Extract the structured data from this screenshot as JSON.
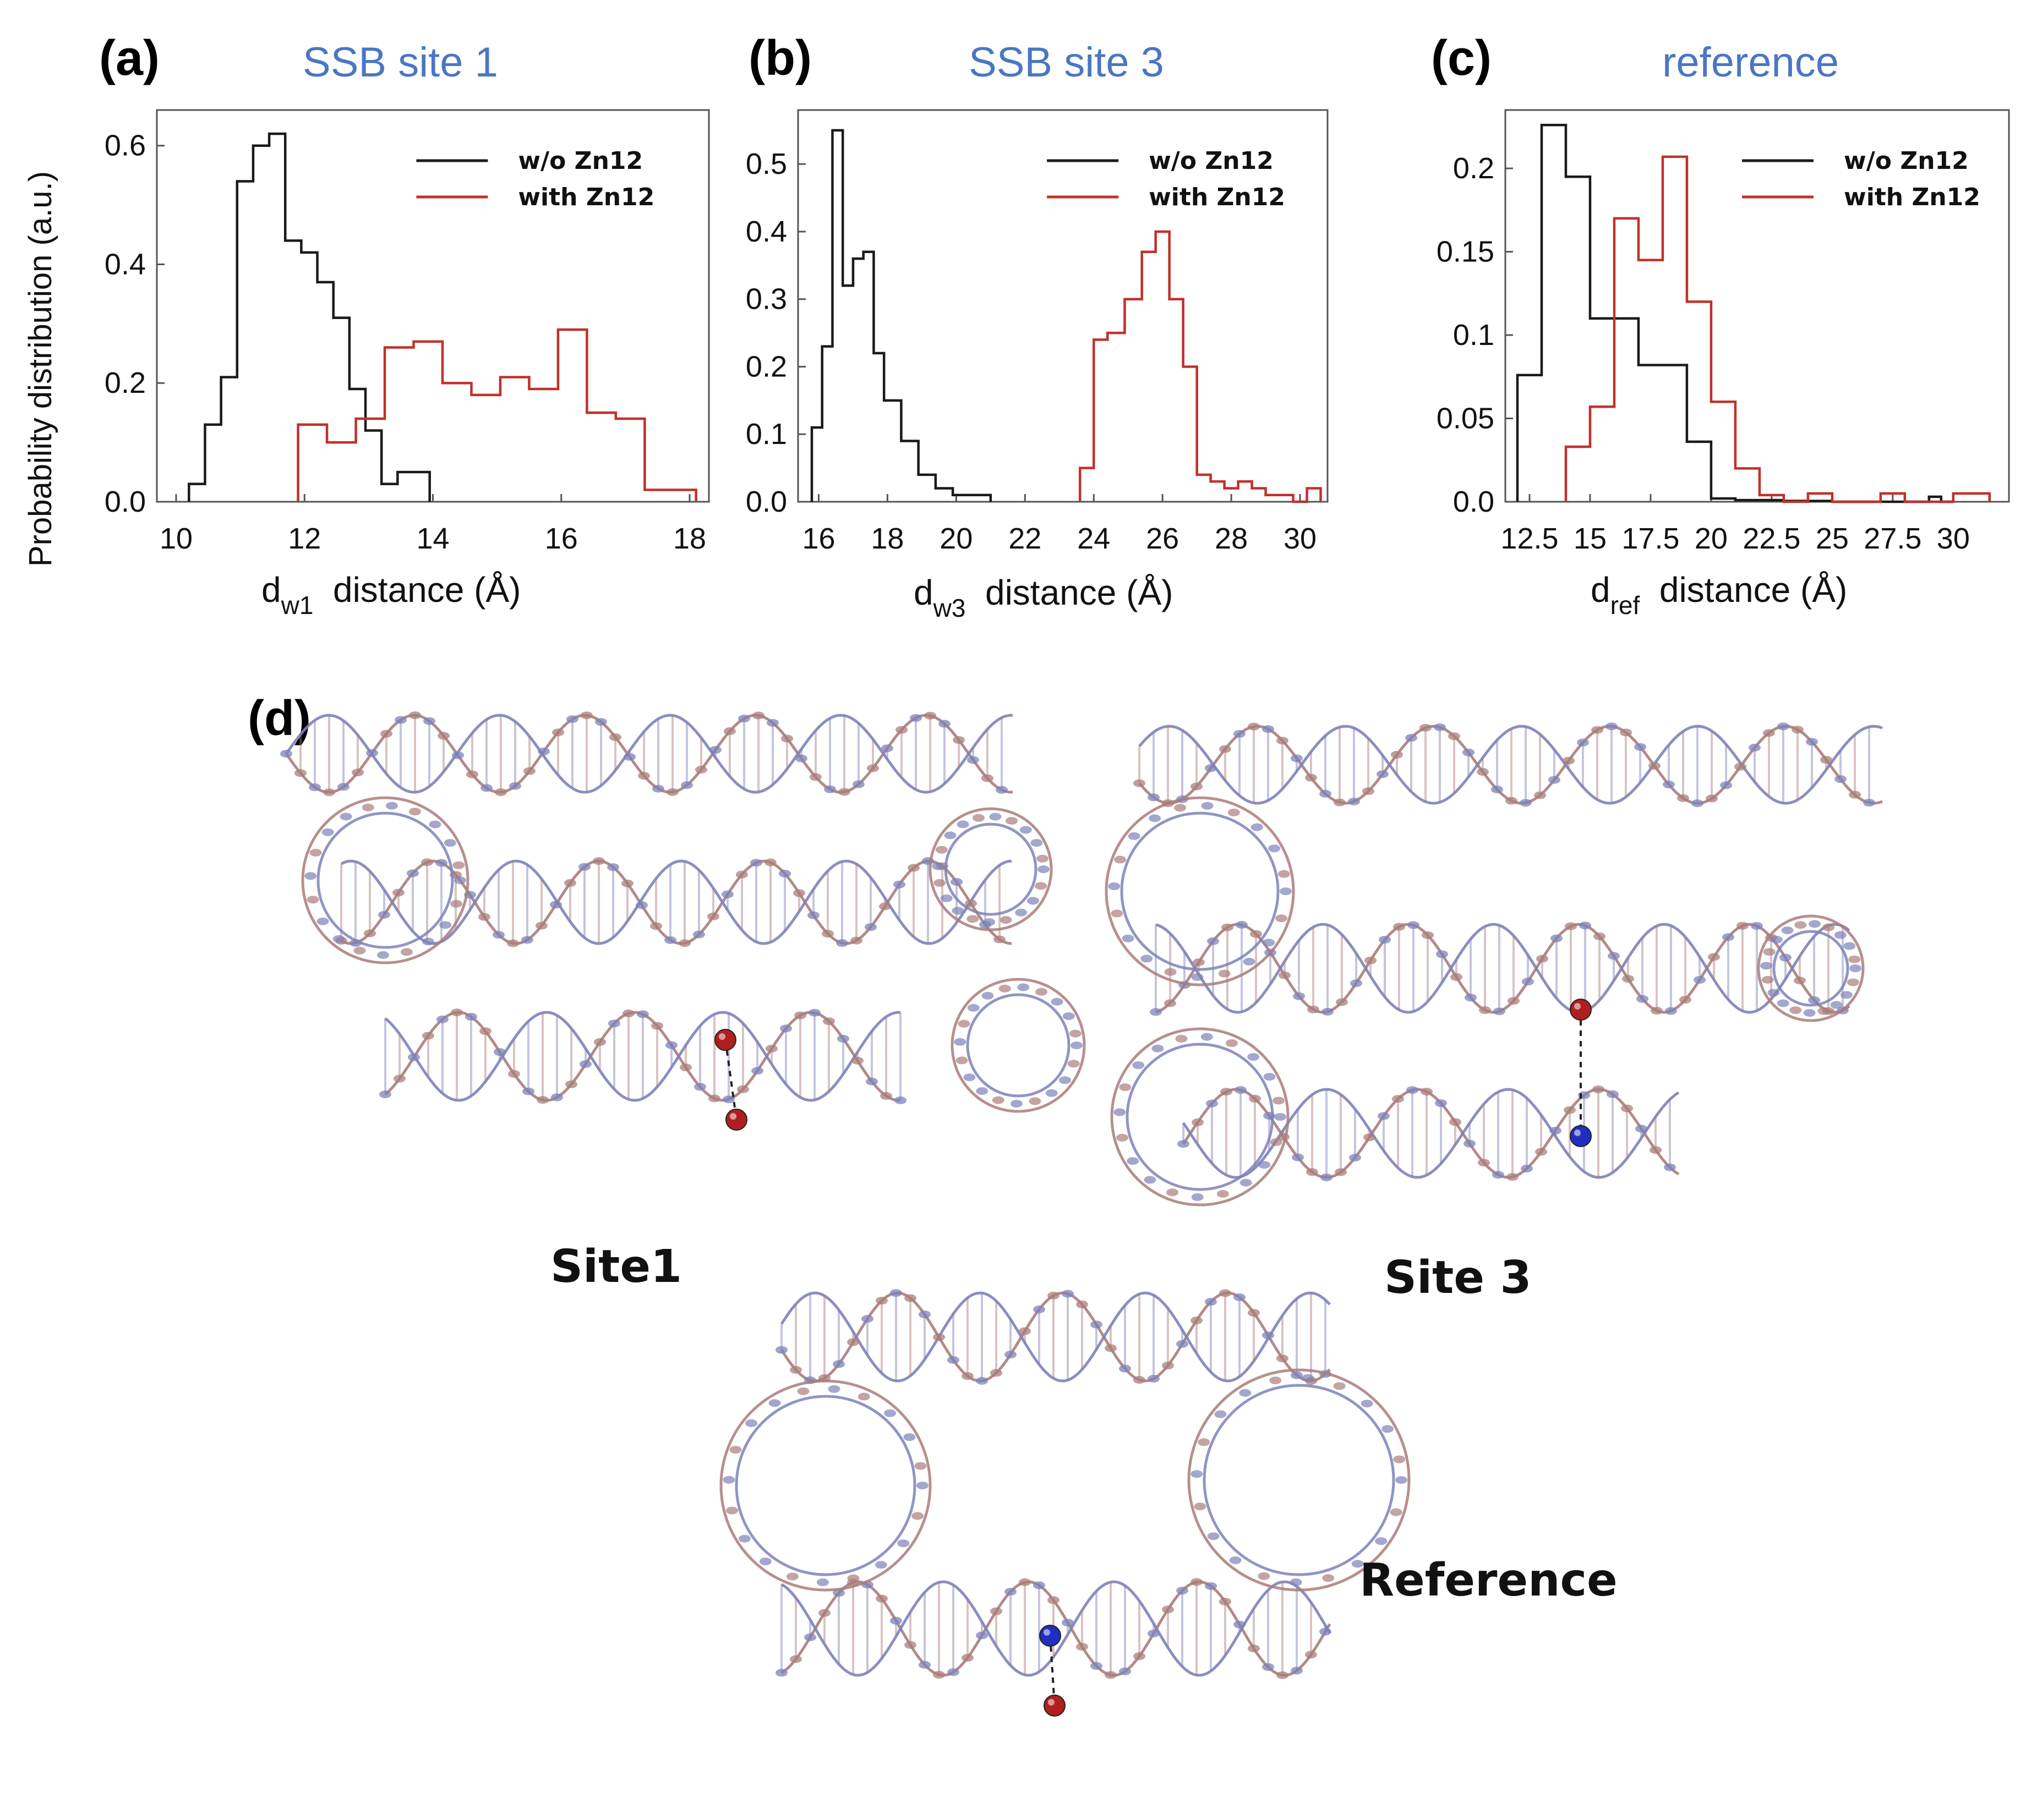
{
  "chart_data": [
    {
      "type": "step-histogram",
      "panel_letter": "(a)",
      "title": "SSB site 1",
      "xlabel_main": "d",
      "xlabel_sub": "w1",
      "xlabel_rest": "distance (Å)",
      "ylabel": "Probability distribution (a.u.)",
      "xlim": [
        9.7,
        18.3
      ],
      "ylim": [
        0,
        0.66
      ],
      "xticks": [
        10,
        12,
        14,
        16,
        18
      ],
      "yticks": [
        0.0,
        0.2,
        0.4,
        0.6
      ],
      "ytick_labels": [
        "0.0",
        "0.2",
        "0.4",
        "0.6"
      ],
      "legend": [
        "w/o Zn12",
        "with Zn12"
      ],
      "series": [
        {
          "name": "w/o Zn12",
          "color": "#1a1a1a",
          "edges": [
            10.2,
            10.45,
            10.7,
            10.95,
            11.2,
            11.45,
            11.7,
            11.95,
            12.2,
            12.45,
            12.7,
            12.95,
            13.2,
            13.45,
            13.7,
            13.95
          ],
          "values": [
            0.03,
            0.13,
            0.21,
            0.54,
            0.6,
            0.62,
            0.44,
            0.42,
            0.37,
            0.31,
            0.19,
            0.12,
            0.03,
            0.05,
            0.05
          ]
        },
        {
          "name": "with Zn12",
          "color": "#c0312b",
          "edges": [
            11.9,
            12.35,
            12.8,
            13.25,
            13.7,
            14.15,
            14.6,
            15.05,
            15.5,
            15.95,
            16.4,
            16.85,
            17.3,
            18.1
          ],
          "values": [
            0.13,
            0.1,
            0.14,
            0.26,
            0.27,
            0.2,
            0.18,
            0.21,
            0.19,
            0.29,
            0.15,
            0.14,
            0.02
          ]
        }
      ]
    },
    {
      "type": "step-histogram",
      "panel_letter": "(b)",
      "title": "SSB site 3",
      "xlabel_main": "d",
      "xlabel_sub": "w3",
      "xlabel_rest": "distance (Å)",
      "ylabel": "",
      "xlim": [
        15.4,
        30.8
      ],
      "ylim": [
        0,
        0.58
      ],
      "xticks": [
        16,
        18,
        20,
        22,
        24,
        26,
        28,
        30
      ],
      "yticks": [
        0.0,
        0.1,
        0.2,
        0.3,
        0.4,
        0.5
      ],
      "ytick_labels": [
        "0.0",
        "0.1",
        "0.2",
        "0.3",
        "0.4",
        "0.5"
      ],
      "legend": [
        "w/o Zn12",
        "with Zn12"
      ],
      "series": [
        {
          "name": "w/o Zn12",
          "color": "#1a1a1a",
          "edges": [
            15.8,
            16.1,
            16.4,
            16.7,
            17.0,
            17.3,
            17.6,
            17.9,
            18.4,
            18.9,
            19.4,
            19.9,
            20.3,
            21.0
          ],
          "values": [
            0.11,
            0.23,
            0.55,
            0.32,
            0.36,
            0.37,
            0.22,
            0.15,
            0.09,
            0.04,
            0.02,
            0.01,
            0.01
          ]
        },
        {
          "name": "with Zn12",
          "color": "#c0312b",
          "edges": [
            23.6,
            24.0,
            24.4,
            24.9,
            25.4,
            25.8,
            26.2,
            26.6,
            27.0,
            27.4,
            27.8,
            28.2,
            28.6,
            29.0,
            29.4,
            29.8,
            30.2,
            30.6
          ],
          "values": [
            0.05,
            0.24,
            0.25,
            0.3,
            0.37,
            0.4,
            0.3,
            0.2,
            0.04,
            0.03,
            0.02,
            0.03,
            0.02,
            0.01,
            0.01,
            0.0,
            0.02
          ]
        }
      ]
    },
    {
      "type": "step-histogram",
      "panel_letter": "(c)",
      "title": "reference",
      "xlabel_main": "d",
      "xlabel_sub": "ref",
      "xlabel_rest": "distance (Å)",
      "ylabel": "",
      "xlim": [
        11.5,
        32.3
      ],
      "ylim": [
        0,
        0.235
      ],
      "xticks": [
        12.5,
        15,
        17.5,
        20,
        22.5,
        25,
        27.5,
        30
      ],
      "xtick_labels": [
        "12.5",
        "15",
        "17.5",
        "20",
        "22.5",
        "25",
        "27.5",
        "30"
      ],
      "yticks": [
        0.0,
        0.05,
        0.1,
        0.15,
        0.2
      ],
      "ytick_labels": [
        "0.0",
        "0.05",
        "0.1",
        "0.15",
        "0.2"
      ],
      "legend": [
        "w/o Zn12",
        "with Zn12"
      ],
      "series": [
        {
          "name": "w/o Zn12",
          "color": "#1a1a1a",
          "edges": [
            12.0,
            13.0,
            14.0,
            15.0,
            16.0,
            17.0,
            18.0,
            19.0,
            20.0,
            21.0,
            22.0,
            23.0,
            24.0,
            25.0,
            29.0,
            29.5,
            30.0
          ],
          "values": [
            0.076,
            0.226,
            0.195,
            0.11,
            0.11,
            0.082,
            0.082,
            0.036,
            0.002,
            0.001,
            0.001,
            0.0005,
            0.0005,
            0.0,
            0.003,
            0.0
          ]
        },
        {
          "name": "with Zn12",
          "color": "#c0312b",
          "edges": [
            14.0,
            15.0,
            16.0,
            17.0,
            18.0,
            19.0,
            20.0,
            21.0,
            22.0,
            23.0,
            24.0,
            25.0,
            26.0,
            27.0,
            28.0,
            29.0,
            30.0,
            31.0,
            31.5
          ],
          "values": [
            0.033,
            0.057,
            0.17,
            0.145,
            0.207,
            0.12,
            0.06,
            0.02,
            0.004,
            0.0,
            0.005,
            0.0,
            0.0,
            0.005,
            0.0,
            0.0,
            0.005,
            0.005
          ]
        }
      ]
    }
  ],
  "panel_d": {
    "letter": "(d)",
    "site1_label": "Site1",
    "site3_label": "Site 3",
    "reference_label": "Reference"
  },
  "colors": {
    "title_blue": "#4a76c4",
    "black_series": "#1a1a1a",
    "red_series": "#c0312b",
    "strand_mauve": "#a97d7a",
    "strand_blue": "#7d82b8",
    "bead_red": "#b01f1f",
    "bead_blue": "#1f2fc0"
  }
}
